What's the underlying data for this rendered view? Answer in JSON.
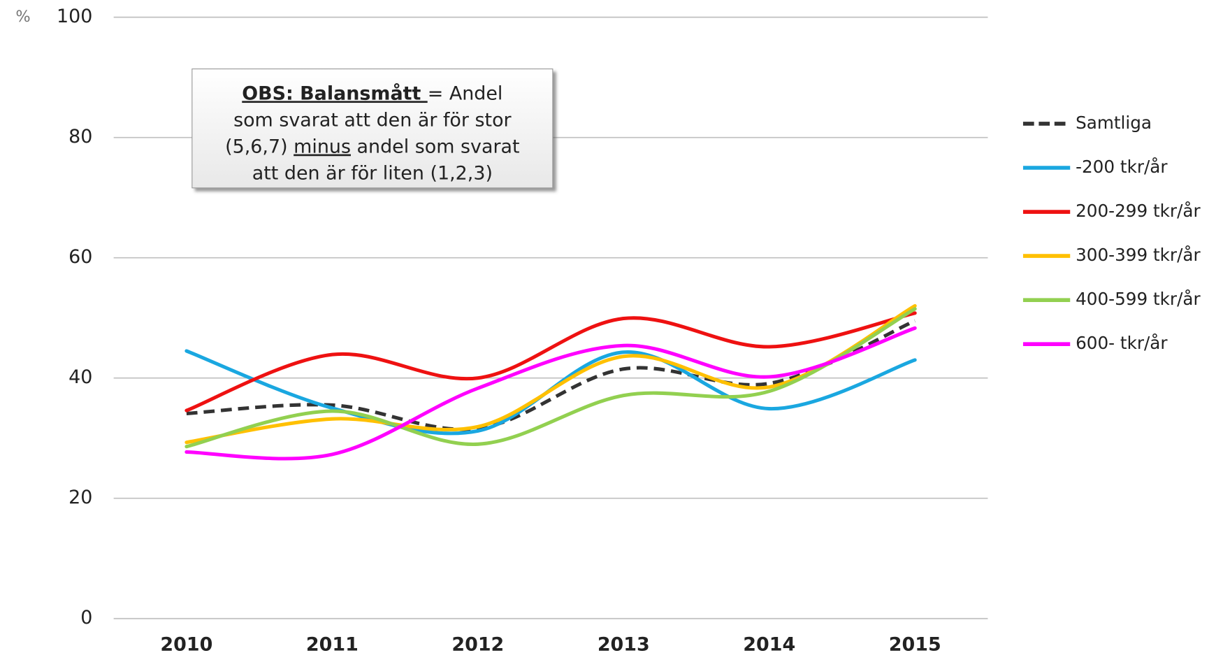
{
  "chart_data": {
    "type": "line",
    "y_unit": "%",
    "categories": [
      "2010",
      "2011",
      "2012",
      "2013",
      "2014",
      "2015"
    ],
    "ylim": [
      0,
      100
    ],
    "yticks": [
      0,
      20,
      40,
      60,
      80,
      100
    ],
    "grid": true,
    "legend": "right",
    "smooth": true,
    "series": [
      {
        "name": "Samtliga",
        "color": "#333333",
        "dash": true,
        "values": [
          34.1,
          35.5,
          31.6,
          41.5,
          39.1,
          49.5
        ]
      },
      {
        "name": "-200 tkr/år",
        "color": "#1aa7e0",
        "values": [
          44.5,
          35.0,
          31.2,
          44.3,
          34.9,
          43.0
        ]
      },
      {
        "name": "200-299 tkr/år",
        "color": "#ee1111",
        "values": [
          34.6,
          43.9,
          40.0,
          49.9,
          45.2,
          50.8
        ]
      },
      {
        "name": "300-399 tkr/år",
        "color": "#ffc000",
        "values": [
          29.3,
          33.2,
          31.9,
          43.6,
          38.5,
          52.0
        ]
      },
      {
        "name": "400-599 tkr/år",
        "color": "#92d050",
        "values": [
          28.6,
          34.5,
          29.0,
          37.1,
          37.8,
          51.5
        ]
      },
      {
        "name": "600- tkr/år",
        "color": "#ff00ff",
        "values": [
          27.7,
          27.3,
          38.3,
          45.4,
          40.2,
          48.3
        ]
      }
    ],
    "annotation": {
      "lines": [
        [
          {
            "text": "OBS: Balansmått ",
            "bold": true,
            "underline": true
          },
          {
            "text": "= Andel"
          }
        ],
        [
          {
            "text": "som svarat att den är för stor"
          }
        ],
        [
          {
            "text": "(5,6,7) "
          },
          {
            "text": "minus",
            "underline": true
          },
          {
            "text": " andel som svarat"
          }
        ],
        [
          {
            "text": "att den är för liten (1,2,3)"
          }
        ]
      ]
    }
  }
}
